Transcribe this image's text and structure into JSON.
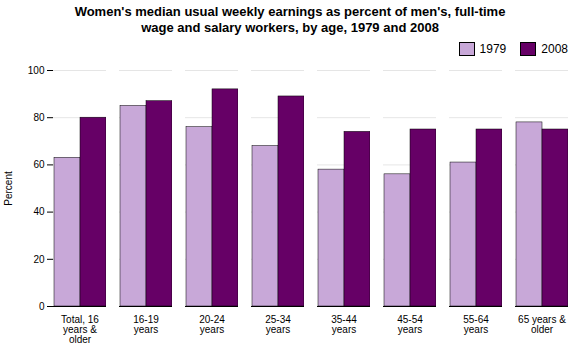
{
  "chart_data": {
    "type": "bar",
    "title": "Women's median usual weekly earnings as percent of men's, full-time\nwage and salary workers, by age, 1979 and 2008",
    "categories": [
      "Total, 16\nyears &\nolder",
      "16-19\nyears",
      "20-24\nyears",
      "25-34\nyears",
      "35-44\nyears",
      "45-54\nyears",
      "55-64\nyears",
      "65 years &\nolder"
    ],
    "series": [
      {
        "name": "1979",
        "color": "#c8a8d8",
        "values": [
          63,
          85,
          76,
          68,
          58,
          56,
          61,
          78
        ]
      },
      {
        "name": "2008",
        "color": "#660066",
        "values": [
          80,
          87,
          92,
          89,
          74,
          75,
          75,
          75
        ]
      }
    ],
    "ylabel": "Percent",
    "ylim": [
      0,
      100
    ],
    "yticks": [
      0,
      20,
      40,
      60,
      80,
      100
    ],
    "grid": true,
    "legend": "upper right"
  }
}
